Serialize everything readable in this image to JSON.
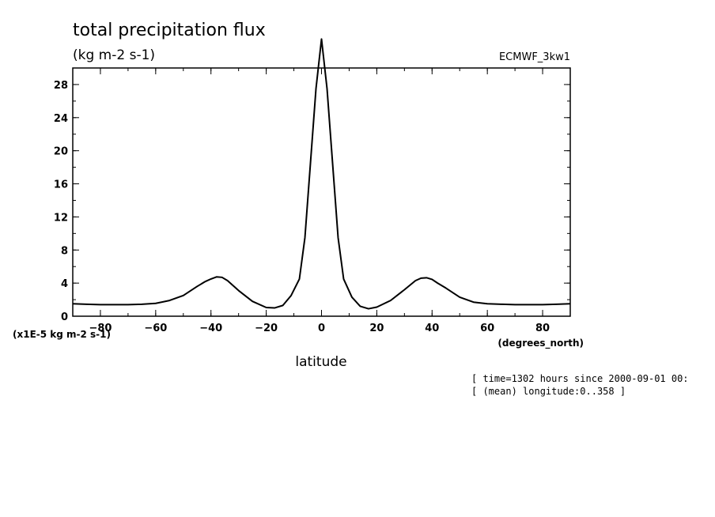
{
  "chart_data": {
    "type": "line",
    "title": "total precipitation flux",
    "subtitle": "(kg m-2 s-1)",
    "run_label": "ECMWF_3kw1",
    "xlabel": "latitude",
    "x_units": "(degrees_north)",
    "y_scale_note": "(x1E-5 kg m-2 s-1)",
    "xlim": [
      -90,
      90
    ],
    "ylim": [
      0,
      30
    ],
    "x_ticks": [
      -80,
      -60,
      -40,
      -20,
      0,
      20,
      40,
      60,
      80
    ],
    "y_ticks": [
      0,
      4,
      8,
      12,
      16,
      20,
      24,
      28
    ],
    "grid": false,
    "x": [
      -90,
      -85,
      -80,
      -75,
      -70,
      -65,
      -60,
      -55,
      -50,
      -45,
      -42,
      -40,
      -38,
      -36,
      -34,
      -30,
      -25,
      -20,
      -17,
      -14,
      -11,
      -8,
      -6,
      -4,
      -2,
      0,
      2,
      4,
      6,
      8,
      11,
      14,
      17,
      20,
      25,
      30,
      34,
      36,
      38,
      40,
      42,
      45,
      50,
      55,
      60,
      65,
      70,
      75,
      80,
      85,
      90
    ],
    "y": [
      1.5,
      1.45,
      1.4,
      1.4,
      1.4,
      1.45,
      1.55,
      1.9,
      2.5,
      3.6,
      4.2,
      4.5,
      4.75,
      4.7,
      4.3,
      3.1,
      1.8,
      1.05,
      1.0,
      1.3,
      2.5,
      4.5,
      9.5,
      18.5,
      27.5,
      33.5,
      27.5,
      18.5,
      9.5,
      4.5,
      2.3,
      1.2,
      0.9,
      1.1,
      1.9,
      3.2,
      4.3,
      4.6,
      4.65,
      4.45,
      4.0,
      3.4,
      2.3,
      1.7,
      1.5,
      1.45,
      1.4,
      1.4,
      1.4,
      1.45,
      1.5
    ]
  },
  "info_lines": [
    "[ time=1302 hours since 2000-09-01 00:",
    "[ (mean) longitude:0..358 ]"
  ]
}
